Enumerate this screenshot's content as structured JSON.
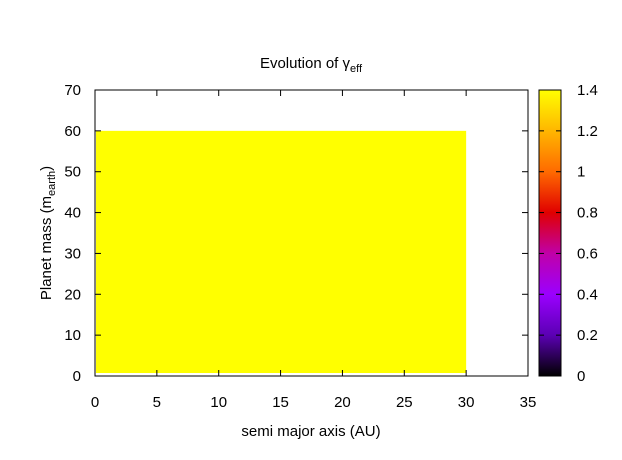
{
  "chart_data": {
    "type": "heatmap",
    "title": "Evolution of γ",
    "title_subscript": "eff",
    "xlabel": "semi major axis (AU)",
    "ylabel": "Planet mass (m",
    "ylabel_subscript": "earth",
    "ylabel_suffix": ")",
    "xlim": [
      0,
      35
    ],
    "ylim": [
      0,
      70
    ],
    "x_ticks": [
      0,
      5,
      10,
      15,
      20,
      25,
      30,
      35
    ],
    "y_ticks": [
      0,
      10,
      20,
      30,
      40,
      50,
      60,
      70
    ],
    "region": {
      "x": [
        0,
        30
      ],
      "y": [
        0,
        60
      ],
      "value": 1.4,
      "color": "#ffff00"
    },
    "colorbar": {
      "range": [
        0,
        1.4
      ],
      "ticks": [
        "0",
        "0.2",
        "0.4",
        "0.6",
        "0.8",
        "1",
        "1.2",
        "1.4"
      ],
      "palette": [
        "#000000",
        "#5b00b4",
        "#9b00ff",
        "#c000a8",
        "#e00000",
        "#ff6a00",
        "#ffb600",
        "#ffff00"
      ]
    },
    "grid": false,
    "legend": "none"
  }
}
